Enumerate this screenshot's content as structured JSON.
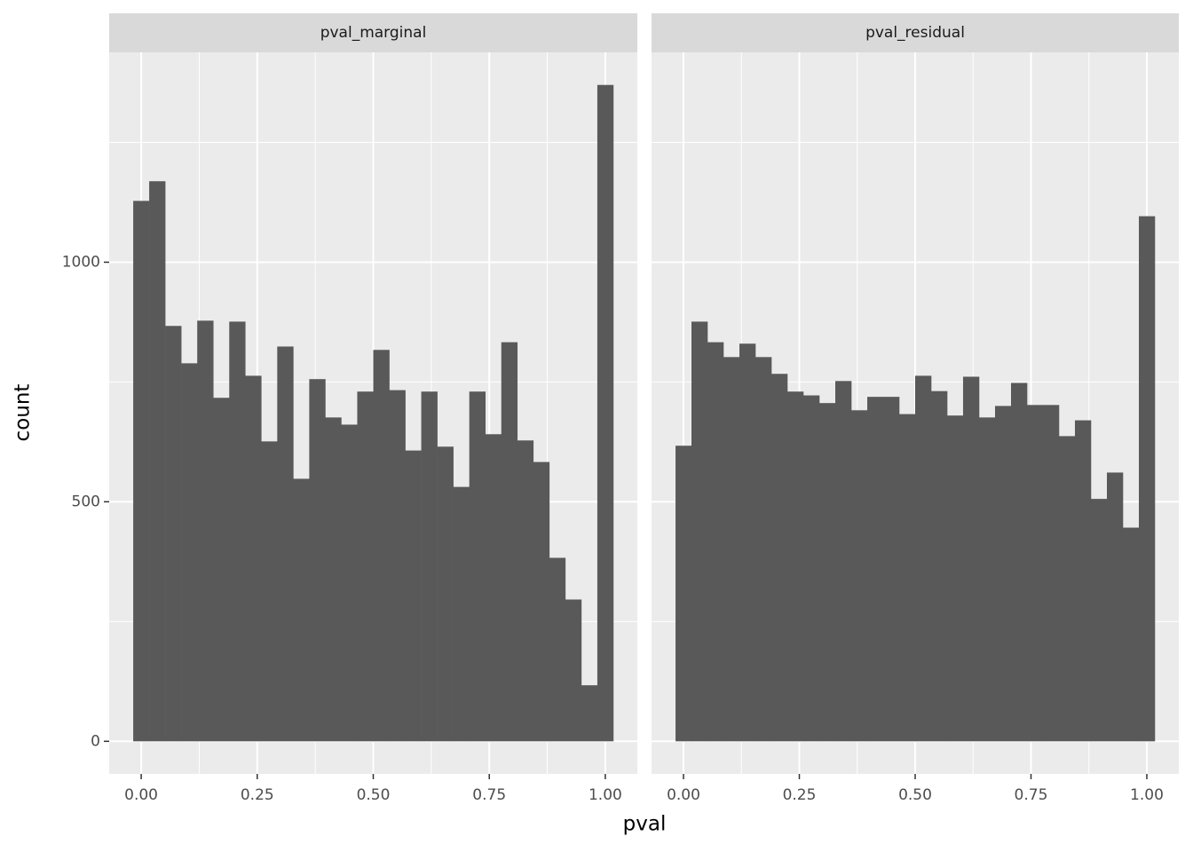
{
  "axis_labels": {
    "x": "pval",
    "y": "count"
  },
  "chart_data": [
    {
      "type": "histogram",
      "title": "pval_marginal",
      "color": "#595959",
      "bins": [
        -0.0172,
        0.0172,
        0.0517,
        0.0862,
        0.1207,
        0.1552,
        0.1897,
        0.2241,
        0.2586,
        0.2931,
        0.3276,
        0.3621,
        0.3966,
        0.431,
        0.4655,
        0.5,
        0.5345,
        0.569,
        0.6034,
        0.6379,
        0.6724,
        0.7069,
        0.7414,
        0.7759,
        0.8103,
        0.8448,
        0.8793,
        0.9138,
        0.9483,
        0.9828,
        1.0172
      ],
      "values": [
        1128,
        1169,
        867,
        789,
        878,
        717,
        876,
        763,
        626,
        824,
        548,
        756,
        676,
        661,
        730,
        817,
        733,
        607,
        730,
        615,
        531,
        730,
        641,
        833,
        628,
        583,
        383,
        296,
        117,
        1370
      ],
      "xlim": [
        -0.069,
        1.069
      ],
      "ylim": [
        -68,
        1438
      ],
      "xticks": [
        {
          "value": 0,
          "label": "0.00"
        },
        {
          "value": 0.25,
          "label": "0.25"
        },
        {
          "value": 0.5,
          "label": "0.50"
        },
        {
          "value": 0.75,
          "label": "0.75"
        },
        {
          "value": 1,
          "label": "1.00"
        }
      ],
      "yticks": [
        0,
        500,
        1000
      ],
      "grid": true
    },
    {
      "type": "histogram",
      "title": "pval_residual",
      "color": "#595959",
      "bins": [
        -0.0172,
        0.0172,
        0.0517,
        0.0862,
        0.1207,
        0.1552,
        0.1897,
        0.2241,
        0.2586,
        0.2931,
        0.3276,
        0.3621,
        0.3966,
        0.431,
        0.4655,
        0.5,
        0.5345,
        0.569,
        0.6034,
        0.6379,
        0.6724,
        0.7069,
        0.7414,
        0.7759,
        0.8103,
        0.8448,
        0.8793,
        0.9138,
        0.9483,
        0.9828,
        1.0172
      ],
      "values": [
        617,
        876,
        833,
        802,
        830,
        802,
        767,
        730,
        722,
        706,
        752,
        691,
        719,
        719,
        683,
        763,
        731,
        680,
        761,
        676,
        700,
        748,
        702,
        702,
        637,
        670,
        506,
        561,
        446,
        1096
      ],
      "xlim": [
        -0.069,
        1.069
      ],
      "ylim": [
        -68,
        1438
      ],
      "xticks": [
        {
          "value": 0,
          "label": "0.00"
        },
        {
          "value": 0.25,
          "label": "0.25"
        },
        {
          "value": 0.5,
          "label": "0.50"
        },
        {
          "value": 0.75,
          "label": "0.75"
        },
        {
          "value": 1,
          "label": "1.00"
        }
      ],
      "yticks": [
        0,
        500,
        1000
      ],
      "grid": true
    }
  ]
}
